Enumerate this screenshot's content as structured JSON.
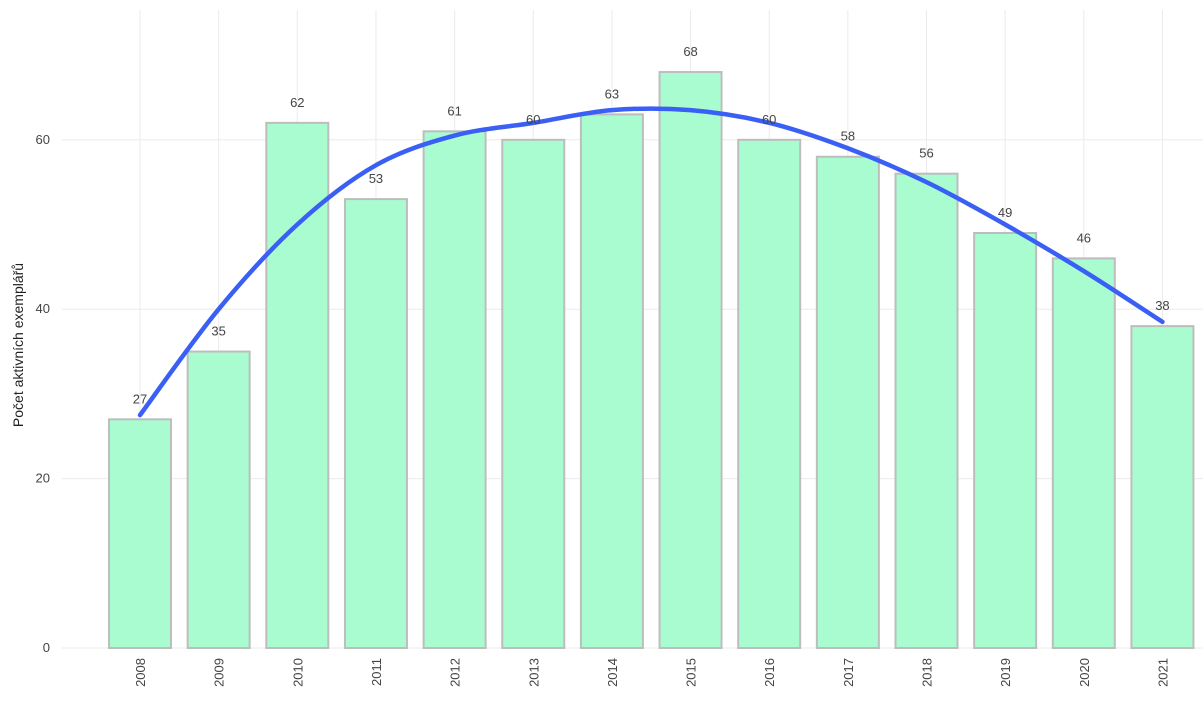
{
  "chart_data": {
    "type": "bar",
    "categories": [
      "2008",
      "2009",
      "2010",
      "2011",
      "2012",
      "2013",
      "2014",
      "2015",
      "2016",
      "2017",
      "2018",
      "2019",
      "2020",
      "2021"
    ],
    "values": [
      27,
      35,
      62,
      53,
      61,
      60,
      63,
      68,
      60,
      58,
      56,
      49,
      46,
      38
    ],
    "data_labels": [
      "27",
      "35",
      "62",
      "53",
      "61",
      "60",
      "63",
      "68",
      "60",
      "58",
      "56",
      "49",
      "46",
      "38"
    ],
    "trend": {
      "type": "line",
      "smooth": true,
      "values": [
        27.5,
        40,
        50,
        57,
        60.5,
        62,
        63.5,
        63.5,
        62,
        59,
        55,
        50,
        44.5,
        38.5
      ],
      "color": "#3a5ff5"
    },
    "ylabel": "Počet aktivních exemplářů",
    "xlabel": "",
    "ylim": [
      0,
      75
    ],
    "yticks": [
      0,
      20,
      40,
      60
    ],
    "ytick_labels": [
      "0",
      "20",
      "40",
      "60"
    ],
    "grid": true,
    "bar_color": "#a8fcd0",
    "bar_edge_color": "#bdbdbd"
  }
}
